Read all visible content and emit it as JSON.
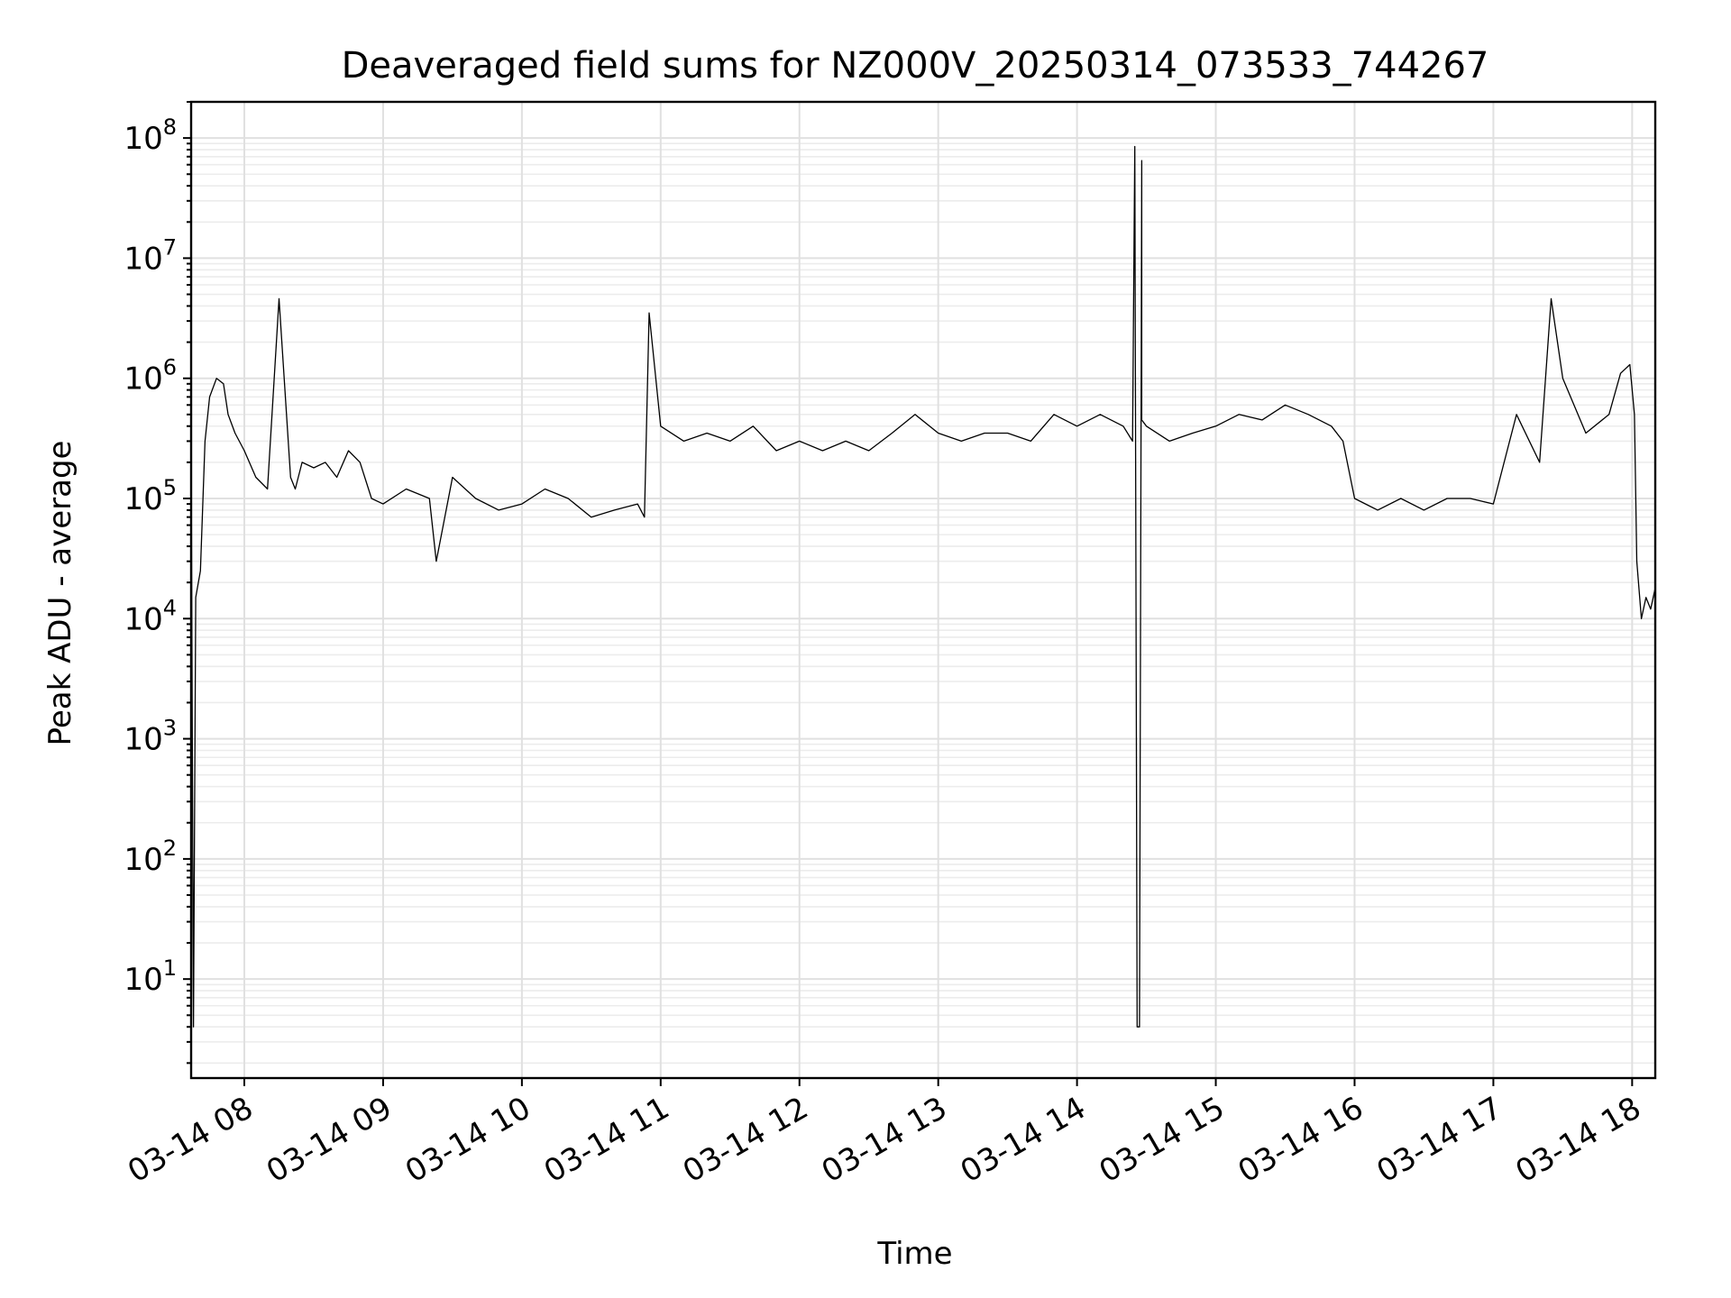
{
  "chart_data": {
    "type": "line",
    "title": "Deaveraged field sums for NZ000V_20250314_073533_744267",
    "xlabel": "Time",
    "ylabel": "Peak ADU - average",
    "yscale": "log",
    "ylim": [
      1.5,
      200000000
    ],
    "xlim": [
      "2025-03-14 07:37",
      "2025-03-14 18:10"
    ],
    "grid": "on (major and minor)",
    "x_ticks": [
      {
        "label": "03-14 08",
        "value": "2025-03-14 08:00"
      },
      {
        "label": "03-14 09",
        "value": "2025-03-14 09:00"
      },
      {
        "label": "03-14 10",
        "value": "2025-03-14 10:00"
      },
      {
        "label": "03-14 11",
        "value": "2025-03-14 11:00"
      },
      {
        "label": "03-14 12",
        "value": "2025-03-14 12:00"
      },
      {
        "label": "03-14 13",
        "value": "2025-03-14 13:00"
      },
      {
        "label": "03-14 14",
        "value": "2025-03-14 14:00"
      },
      {
        "label": "03-14 15",
        "value": "2025-03-14 15:00"
      },
      {
        "label": "03-14 16",
        "value": "2025-03-14 16:00"
      },
      {
        "label": "03-14 17",
        "value": "2025-03-14 17:00"
      },
      {
        "label": "03-14 18",
        "value": "2025-03-14 18:00"
      }
    ],
    "y_ticks": [
      {
        "base": "10",
        "exp": "1",
        "value": 10
      },
      {
        "base": "10",
        "exp": "2",
        "value": 100
      },
      {
        "base": "10",
        "exp": "3",
        "value": 1000
      },
      {
        "base": "10",
        "exp": "4",
        "value": 10000
      },
      {
        "base": "10",
        "exp": "5",
        "value": 100000
      },
      {
        "base": "10",
        "exp": "6",
        "value": 1000000
      },
      {
        "base": "10",
        "exp": "7",
        "value": 10000000
      },
      {
        "base": "10",
        "exp": "8",
        "value": 100000000
      }
    ],
    "line_color": "#000000",
    "series": [
      {
        "x": [
          "2025-03-14 07:37",
          "2025-03-14 07:38",
          "2025-03-14 07:39",
          "2025-03-14 07:41",
          "2025-03-14 07:43",
          "2025-03-14 07:45",
          "2025-03-14 07:48",
          "2025-03-14 07:51",
          "2025-03-14 07:53",
          "2025-03-14 07:56",
          "2025-03-14 08:00",
          "2025-03-14 08:05",
          "2025-03-14 08:10",
          "2025-03-14 08:15",
          "2025-03-14 08:20",
          "2025-03-14 08:22",
          "2025-03-14 08:25",
          "2025-03-14 08:30",
          "2025-03-14 08:35",
          "2025-03-14 08:40",
          "2025-03-14 08:45",
          "2025-03-14 08:50",
          "2025-03-14 08:55",
          "2025-03-14 09:00",
          "2025-03-14 09:10",
          "2025-03-14 09:20",
          "2025-03-14 09:23",
          "2025-03-14 09:30",
          "2025-03-14 09:40",
          "2025-03-14 09:50",
          "2025-03-14 10:00",
          "2025-03-14 10:10",
          "2025-03-14 10:20",
          "2025-03-14 10:30",
          "2025-03-14 10:40",
          "2025-03-14 10:50",
          "2025-03-14 10:53",
          "2025-03-14 10:55",
          "2025-03-14 11:00",
          "2025-03-14 11:10",
          "2025-03-14 11:20",
          "2025-03-14 11:30",
          "2025-03-14 11:40",
          "2025-03-14 11:50",
          "2025-03-14 12:00",
          "2025-03-14 12:10",
          "2025-03-14 12:20",
          "2025-03-14 12:30",
          "2025-03-14 12:40",
          "2025-03-14 12:50",
          "2025-03-14 13:00",
          "2025-03-14 13:10",
          "2025-03-14 13:20",
          "2025-03-14 13:30",
          "2025-03-14 13:40",
          "2025-03-14 13:50",
          "2025-03-14 14:00",
          "2025-03-14 14:10",
          "2025-03-14 14:20",
          "2025-03-14 14:24",
          "2025-03-14 14:25",
          "2025-03-14 14:26",
          "2025-03-14 14:27",
          "2025-03-14 14:28",
          "2025-03-14 14:28",
          "2025-03-14 14:30",
          "2025-03-14 14:40",
          "2025-03-14 14:50",
          "2025-03-14 15:00",
          "2025-03-14 15:10",
          "2025-03-14 15:20",
          "2025-03-14 15:30",
          "2025-03-14 15:40",
          "2025-03-14 15:50",
          "2025-03-14 15:55",
          "2025-03-14 16:00",
          "2025-03-14 16:10",
          "2025-03-14 16:20",
          "2025-03-14 16:30",
          "2025-03-14 16:40",
          "2025-03-14 16:50",
          "2025-03-14 17:00",
          "2025-03-14 17:10",
          "2025-03-14 17:20",
          "2025-03-14 17:25",
          "2025-03-14 17:30",
          "2025-03-14 17:40",
          "2025-03-14 17:50",
          "2025-03-14 17:55",
          "2025-03-14 17:59",
          "2025-03-14 18:01",
          "2025-03-14 18:02",
          "2025-03-14 18:04",
          "2025-03-14 18:06",
          "2025-03-14 18:08",
          "2025-03-14 18:10"
        ],
        "y": [
          280000,
          4,
          15000,
          25000,
          300000,
          700000,
          1000000,
          900000,
          500000,
          350000,
          250000,
          150000,
          120000,
          4600000,
          150000,
          120000,
          200000,
          180000,
          200000,
          150000,
          250000,
          200000,
          100000,
          90000,
          120000,
          100000,
          30000,
          150000,
          100000,
          80000,
          90000,
          120000,
          100000,
          70000,
          80000,
          90000,
          70000,
          3500000,
          400000,
          300000,
          350000,
          300000,
          400000,
          250000,
          300000,
          250000,
          300000,
          250000,
          350000,
          500000,
          350000,
          300000,
          350000,
          350000,
          300000,
          500000,
          400000,
          500000,
          400000,
          300000,
          85000000,
          4,
          4,
          65000000,
          450000,
          400000,
          300000,
          350000,
          400000,
          500000,
          450000,
          600000,
          500000,
          400000,
          300000,
          100000,
          80000,
          100000,
          80000,
          100000,
          100000,
          90000,
          500000,
          200000,
          4600000,
          1000000,
          350000,
          500000,
          1100000,
          1300000,
          500000,
          30000,
          10000,
          15000,
          12000,
          18000
        ]
      }
    ]
  }
}
